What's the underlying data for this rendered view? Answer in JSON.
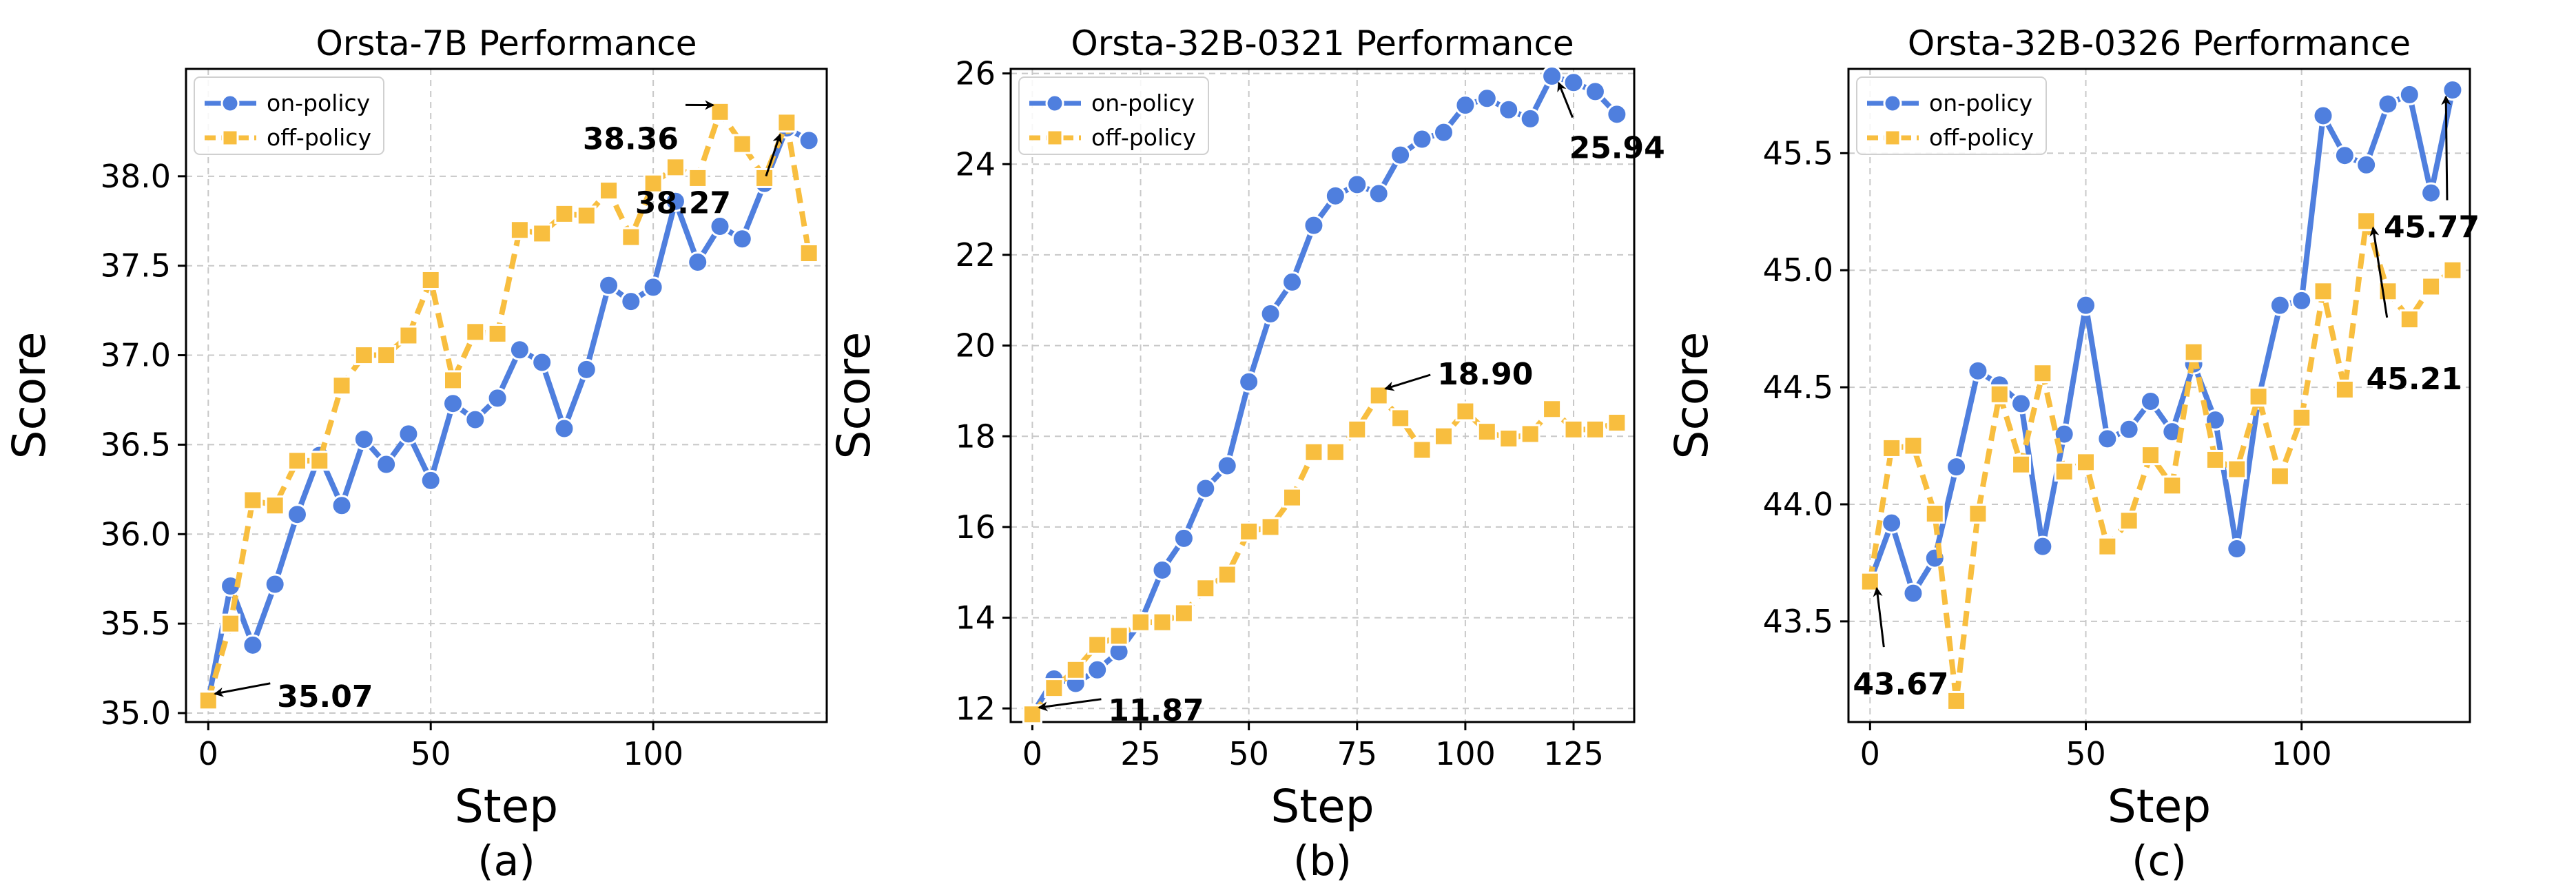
{
  "chart_data": [
    {
      "type": "line",
      "title": "Orsta-7B Performance",
      "xlabel": "Step",
      "ylabel": "Score",
      "sublabel": "(a)",
      "xlim": [
        -5,
        139
      ],
      "ylim": [
        34.95,
        38.6
      ],
      "xticks": [
        0,
        50,
        100
      ],
      "xtick_labels": [
        "0",
        "50",
        "100"
      ],
      "yticks": [
        35.0,
        35.5,
        36.0,
        36.5,
        37.0,
        37.5,
        38.0
      ],
      "ytick_labels": [
        "35.0",
        "35.5",
        "36.0",
        "36.5",
        "37.0",
        "37.5",
        "38.0"
      ],
      "grid": true,
      "legend": "top-left",
      "series": [
        {
          "name": "on-policy",
          "x": [
            0,
            5,
            10,
            15,
            20,
            25,
            30,
            35,
            40,
            45,
            50,
            55,
            60,
            65,
            70,
            75,
            80,
            85,
            90,
            95,
            100,
            105,
            110,
            115,
            120,
            125,
            130,
            135
          ],
          "values": [
            35.07,
            35.71,
            35.38,
            35.72,
            36.11,
            36.44,
            36.16,
            36.53,
            36.39,
            36.56,
            36.3,
            36.73,
            36.64,
            36.76,
            37.03,
            36.96,
            36.59,
            36.92,
            37.39,
            37.3,
            37.38,
            37.86,
            37.52,
            37.72,
            37.65,
            37.96,
            38.27,
            38.2
          ]
        },
        {
          "name": "off-policy",
          "x": [
            0,
            5,
            10,
            15,
            20,
            25,
            30,
            35,
            40,
            45,
            50,
            55,
            60,
            65,
            70,
            75,
            80,
            85,
            90,
            95,
            100,
            105,
            110,
            115,
            120,
            125,
            130,
            135
          ],
          "values": [
            35.07,
            35.5,
            36.19,
            36.16,
            36.41,
            36.41,
            36.83,
            37.0,
            37.0,
            37.11,
            37.42,
            36.86,
            37.13,
            37.12,
            37.7,
            37.68,
            37.79,
            37.78,
            37.92,
            37.66,
            37.96,
            38.05,
            37.99,
            38.36,
            38.18,
            37.99,
            38.3,
            37.57
          ]
        }
      ],
      "annotations": [
        {
          "text": "35.07",
          "x": 0,
          "y": 35.07
        },
        {
          "text": "38.36",
          "x": 115,
          "y": 38.36
        },
        {
          "text": "38.27",
          "x": 130,
          "y": 38.27
        }
      ]
    },
    {
      "type": "line",
      "title": "Orsta-32B-0321 Performance",
      "xlabel": "Step",
      "ylabel": "Score",
      "sublabel": "(b)",
      "xlim": [
        -5,
        139
      ],
      "ylim": [
        11.7,
        26.1
      ],
      "xticks": [
        0,
        25,
        50,
        75,
        100,
        125
      ],
      "xtick_labels": [
        "0",
        "25",
        "50",
        "75",
        "100",
        "125"
      ],
      "yticks": [
        12,
        14,
        16,
        18,
        20,
        22,
        24,
        26
      ],
      "ytick_labels": [
        "12",
        "14",
        "16",
        "18",
        "20",
        "22",
        "24",
        "26"
      ],
      "grid": true,
      "legend": "top-left",
      "series": [
        {
          "name": "on-policy",
          "x": [
            0,
            5,
            10,
            15,
            20,
            25,
            30,
            35,
            40,
            45,
            50,
            55,
            60,
            65,
            70,
            75,
            80,
            85,
            90,
            95,
            100,
            105,
            110,
            115,
            120,
            125,
            130,
            135
          ],
          "values": [
            11.87,
            12.65,
            12.55,
            12.85,
            13.25,
            13.9,
            15.05,
            15.75,
            16.85,
            17.35,
            19.2,
            20.7,
            21.4,
            22.65,
            23.3,
            23.55,
            23.35,
            24.2,
            24.55,
            24.7,
            25.3,
            25.45,
            25.2,
            25.0,
            25.94,
            25.8,
            25.6,
            25.1
          ]
        },
        {
          "name": "off-policy",
          "x": [
            0,
            5,
            10,
            15,
            20,
            25,
            30,
            35,
            40,
            45,
            50,
            55,
            60,
            65,
            70,
            75,
            80,
            85,
            90,
            95,
            100,
            105,
            110,
            115,
            120,
            125,
            130,
            135
          ],
          "values": [
            11.87,
            12.45,
            12.85,
            13.4,
            13.6,
            13.9,
            13.9,
            14.1,
            14.65,
            14.95,
            15.9,
            16.0,
            16.65,
            17.65,
            17.65,
            18.15,
            18.9,
            18.4,
            17.7,
            18.0,
            18.55,
            18.1,
            17.95,
            18.05,
            18.6,
            18.15,
            18.15,
            18.3
          ]
        }
      ],
      "annotations": [
        {
          "text": "11.87",
          "x": 0,
          "y": 11.87
        },
        {
          "text": "18.90",
          "x": 80,
          "y": 18.9
        },
        {
          "text": "25.94",
          "x": 120,
          "y": 25.94
        }
      ]
    },
    {
      "type": "line",
      "title": "Orsta-32B-0326 Performance",
      "xlabel": "Step",
      "ylabel": "Score",
      "sublabel": "(c)",
      "xlim": [
        -5,
        139
      ],
      "ylim": [
        43.07,
        45.86
      ],
      "xticks": [
        0,
        50,
        100
      ],
      "xtick_labels": [
        "0",
        "50",
        "100"
      ],
      "yticks": [
        43.5,
        44.0,
        44.5,
        45.0,
        45.5
      ],
      "ytick_labels": [
        "43.5",
        "44.0",
        "44.5",
        "45.0",
        "45.5"
      ],
      "grid": true,
      "legend": "top-left",
      "series": [
        {
          "name": "on-policy",
          "x": [
            0,
            5,
            10,
            15,
            20,
            25,
            30,
            35,
            40,
            45,
            50,
            55,
            60,
            65,
            70,
            75,
            80,
            85,
            90,
            95,
            100,
            105,
            110,
            115,
            120,
            125,
            130,
            135
          ],
          "values": [
            43.67,
            43.92,
            43.62,
            43.77,
            44.16,
            44.57,
            44.51,
            44.43,
            43.82,
            44.3,
            44.85,
            44.28,
            44.32,
            44.44,
            44.31,
            44.6,
            44.36,
            43.81,
            44.45,
            44.85,
            44.87,
            45.66,
            45.49,
            45.45,
            45.71,
            45.75,
            45.33,
            45.77
          ]
        },
        {
          "name": "off-policy",
          "x": [
            0,
            5,
            10,
            15,
            20,
            25,
            30,
            35,
            40,
            45,
            50,
            55,
            60,
            65,
            70,
            75,
            80,
            85,
            90,
            95,
            100,
            105,
            110,
            115,
            120,
            125,
            130,
            135
          ],
          "values": [
            43.67,
            44.24,
            44.25,
            43.96,
            43.16,
            43.96,
            44.47,
            44.17,
            44.56,
            44.14,
            44.18,
            43.82,
            43.93,
            44.21,
            44.08,
            44.65,
            44.19,
            44.15,
            44.46,
            44.12,
            44.37,
            44.91,
            44.49,
            45.21,
            44.91,
            44.79,
            44.93,
            45.0
          ]
        }
      ],
      "annotations": [
        {
          "text": "43.67",
          "x": 0,
          "y": 43.67
        },
        {
          "text": "45.21",
          "x": 115,
          "y": 45.21
        },
        {
          "text": "45.77",
          "x": 135,
          "y": 45.77
        }
      ]
    }
  ],
  "colors": {
    "on_policy": "#4f7fde",
    "off_policy": "#f8be3f",
    "grid": "#c8c8c8",
    "axis": "#000000",
    "annotation_text": "#000000"
  }
}
